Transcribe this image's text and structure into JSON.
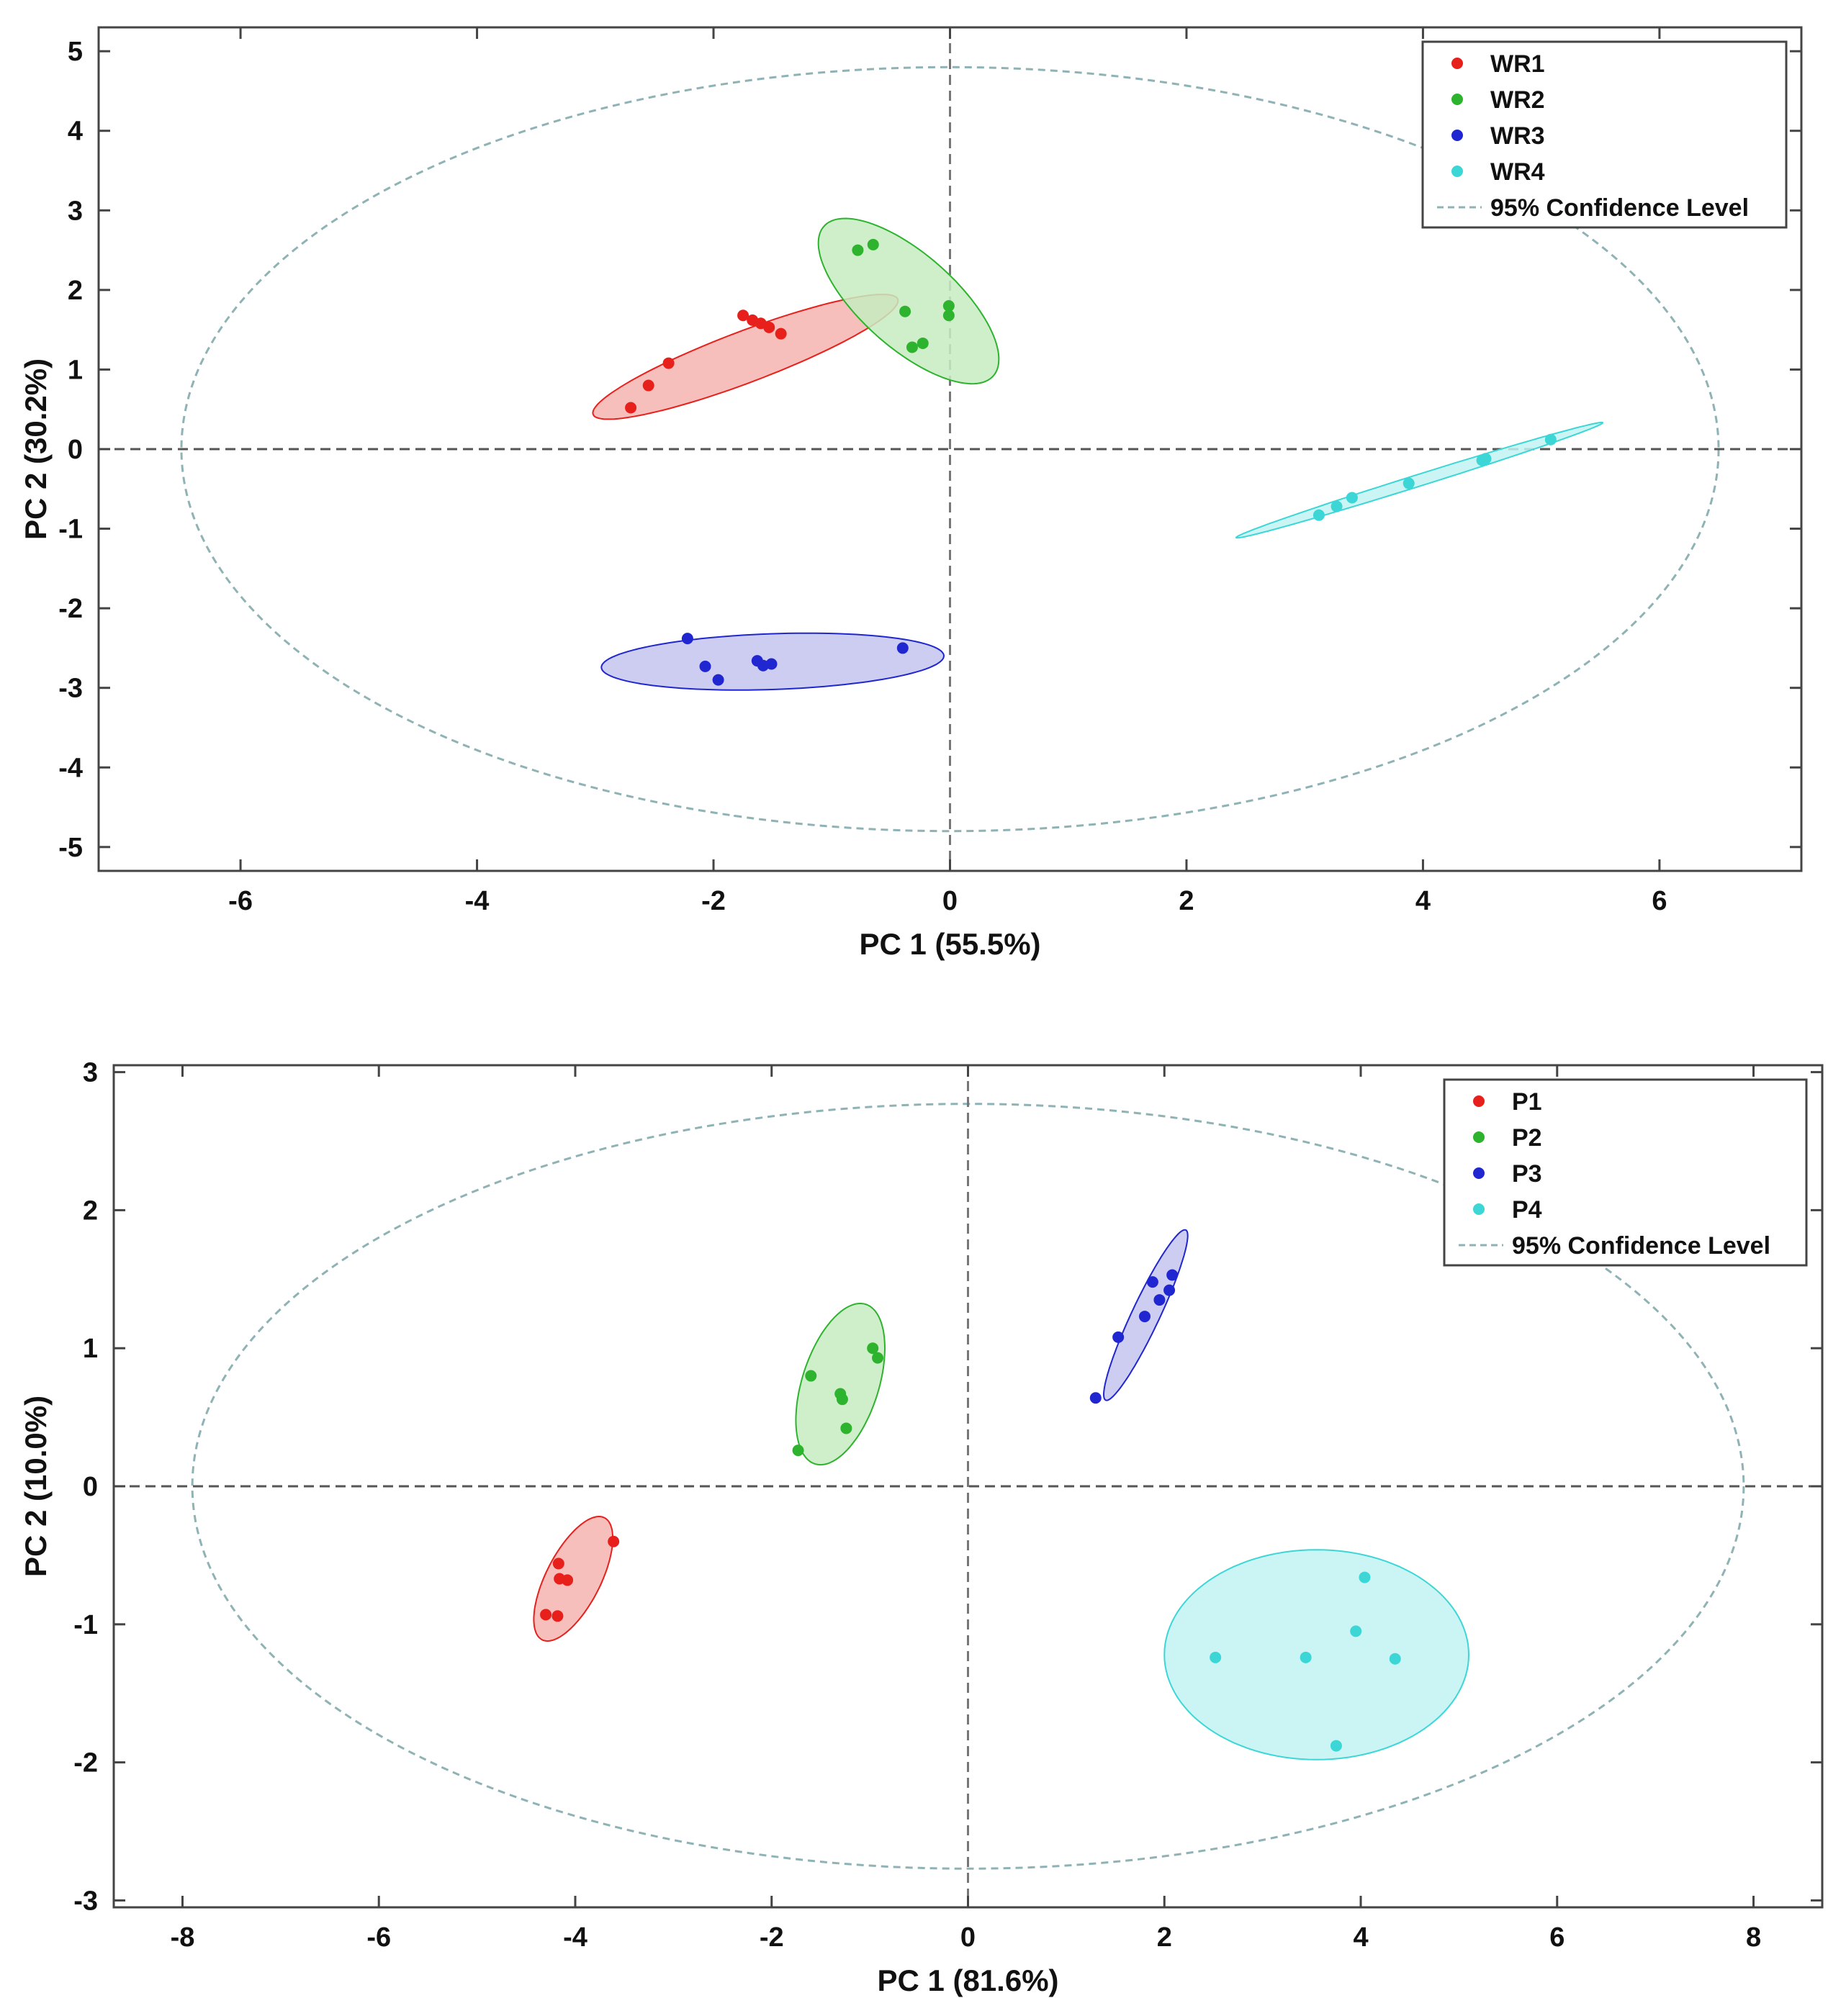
{
  "chart_data": [
    {
      "type": "scatter",
      "xlabel": "PC 1 (55.5%)",
      "ylabel": "PC 2 (30.2%)",
      "xlim": [
        -7.2,
        7.2
      ],
      "ylim": [
        -5.3,
        5.3
      ],
      "xticks": [
        -6,
        -4,
        -2,
        0,
        2,
        4,
        6
      ],
      "yticks": [
        -5,
        -4,
        -3,
        -2,
        -1,
        0,
        1,
        2,
        3,
        4,
        5
      ],
      "grid": false,
      "legend_position": "top-right",
      "confidence_label": "95% Confidence Level",
      "confidence_ellipse": {
        "cx": 0,
        "cy": 0,
        "rx": 6.5,
        "ry": 4.8,
        "angle": 0
      },
      "series": [
        {
          "name": "WR1",
          "color": "#e8201c",
          "fill": "#f5b4b0",
          "points": [
            [
              -2.7,
              0.52
            ],
            [
              -2.55,
              0.8
            ],
            [
              -2.38,
              1.08
            ],
            [
              -1.75,
              1.68
            ],
            [
              -1.67,
              1.62
            ],
            [
              -1.6,
              1.58
            ],
            [
              -1.53,
              1.53
            ],
            [
              -1.43,
              1.45
            ]
          ],
          "ellipse": {
            "cx": -1.73,
            "cy": 1.16,
            "rx": 1.48,
            "ry": 0.3,
            "angle": 30
          }
        },
        {
          "name": "WR2",
          "color": "#2db32d",
          "fill": "#c6ecc1",
          "points": [
            [
              -0.78,
              2.5
            ],
            [
              -0.65,
              2.57
            ],
            [
              -0.38,
              1.73
            ],
            [
              -0.32,
              1.28
            ],
            [
              -0.23,
              1.33
            ],
            [
              -0.01,
              1.8
            ],
            [
              -0.01,
              1.68
            ]
          ],
          "ellipse": {
            "cx": -0.35,
            "cy": 1.86,
            "rx": 1.2,
            "ry": 0.47,
            "angle": -57
          }
        },
        {
          "name": "WR3",
          "color": "#2026d0",
          "fill": "#c3c4ef",
          "points": [
            [
              -2.22,
              -2.38
            ],
            [
              -2.07,
              -2.73
            ],
            [
              -1.96,
              -2.9
            ],
            [
              -1.63,
              -2.66
            ],
            [
              -1.58,
              -2.72
            ],
            [
              -1.51,
              -2.7
            ],
            [
              -0.4,
              -2.5
            ]
          ],
          "ellipse": {
            "cx": -1.5,
            "cy": -2.67,
            "rx": 1.45,
            "ry": 0.35,
            "angle": 3
          }
        },
        {
          "name": "WR4",
          "color": "#3cd6d6",
          "fill": "#c2f3f3",
          "points": [
            [
              3.12,
              -0.83
            ],
            [
              3.27,
              -0.72
            ],
            [
              3.4,
              -0.61
            ],
            [
              3.88,
              -0.43
            ],
            [
              4.5,
              -0.14
            ],
            [
              4.53,
              -0.12
            ],
            [
              5.08,
              0.12
            ]
          ],
          "ellipse": {
            "cx": 3.97,
            "cy": -0.39,
            "rx": 1.71,
            "ry": 0.07,
            "angle": 25
          }
        }
      ]
    },
    {
      "type": "scatter",
      "xlabel": "PC 1 (81.6%)",
      "ylabel": "PC 2 (10.0%)",
      "xlim": [
        -8.7,
        8.7
      ],
      "ylim": [
        -3.05,
        3.05
      ],
      "xticks": [
        -8,
        -6,
        -4,
        -2,
        0,
        2,
        4,
        6,
        8
      ],
      "yticks": [
        -3,
        -2,
        -1,
        0,
        1,
        2,
        3
      ],
      "grid": false,
      "legend_position": "top-right",
      "confidence_label": "95% Confidence Level",
      "confidence_ellipse": {
        "cx": 0,
        "cy": 0,
        "rx": 7.9,
        "ry": 2.77,
        "angle": 0
      },
      "series": [
        {
          "name": "P1",
          "color": "#e8201c",
          "fill": "#f5b4b0",
          "points": [
            [
              -4.3,
              -0.93
            ],
            [
              -4.18,
              -0.94
            ],
            [
              -4.17,
              -0.56
            ],
            [
              -4.16,
              -0.67
            ],
            [
              -4.08,
              -0.68
            ],
            [
              -3.61,
              -0.4
            ]
          ],
          "ellipse": {
            "cx": -4.02,
            "cy": -0.67,
            "rx": 0.55,
            "ry": 0.25,
            "angle": 50
          }
        },
        {
          "name": "P2",
          "color": "#2db32d",
          "fill": "#c6ecc1",
          "points": [
            [
              -1.73,
              0.26
            ],
            [
              -1.6,
              0.8
            ],
            [
              -1.3,
              0.67
            ],
            [
              -1.28,
              0.63
            ],
            [
              -1.24,
              0.42
            ],
            [
              -0.97,
              1.0
            ],
            [
              -0.92,
              0.93
            ]
          ],
          "ellipse": {
            "cx": -1.3,
            "cy": 0.74,
            "rx": 0.64,
            "ry": 0.37,
            "angle": 60
          }
        },
        {
          "name": "P3",
          "color": "#2026d0",
          "fill": "#c3c4ef",
          "points": [
            [
              1.3,
              0.64
            ],
            [
              1.53,
              1.08
            ],
            [
              1.8,
              1.23
            ],
            [
              1.88,
              1.48
            ],
            [
              1.95,
              1.35
            ],
            [
              2.05,
              1.42
            ],
            [
              2.08,
              1.53
            ]
          ],
          "ellipse": {
            "cx": 1.81,
            "cy": 1.24,
            "rx": 0.74,
            "ry": 0.13,
            "angle": 56
          }
        },
        {
          "name": "P4",
          "color": "#3cd6d6",
          "fill": "#c2f3f3",
          "points": [
            [
              2.52,
              -1.24
            ],
            [
              3.44,
              -1.24
            ],
            [
              3.75,
              -1.88
            ],
            [
              3.95,
              -1.05
            ],
            [
              4.04,
              -0.66
            ],
            [
              4.35,
              -1.25
            ]
          ],
          "ellipse": {
            "cx": 3.55,
            "cy": -1.22,
            "rx": 1.55,
            "ry": 0.76,
            "angle": 0
          }
        }
      ]
    }
  ]
}
